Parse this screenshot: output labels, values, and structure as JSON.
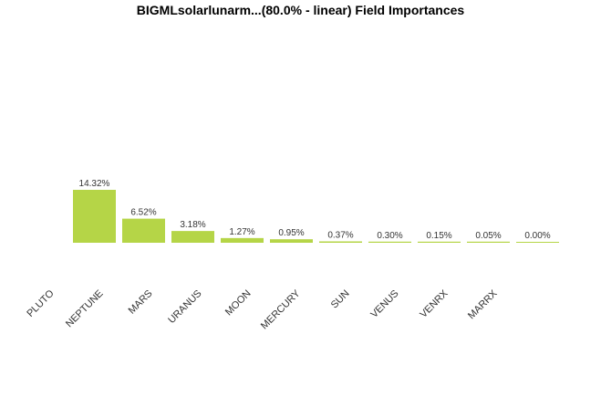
{
  "chart_data": {
    "type": "bar",
    "title": "BIGMLsolarlunarm...(80.0% - linear) Field Importances",
    "categories": [
      "PLUTO",
      "NEPTUNE",
      "MARS",
      "URANUS",
      "MOON",
      "MERCURY",
      "SUN",
      "VENUS",
      "VENRX",
      "MARRX"
    ],
    "values": [
      14.32,
      6.52,
      3.18,
      1.27,
      0.95,
      0.37,
      0.3,
      0.15,
      0.05,
      0.0
    ],
    "value_labels": [
      "14.32%",
      "6.52%",
      "3.18%",
      "1.27%",
      "0.95%",
      "0.37%",
      "0.30%",
      "0.15%",
      "0.05%",
      "0.00%"
    ],
    "ylim": [
      0,
      14.32
    ],
    "grid": false,
    "colors": {
      "bar": "#b5d547",
      "title": "#000000",
      "text": "#333333"
    }
  }
}
